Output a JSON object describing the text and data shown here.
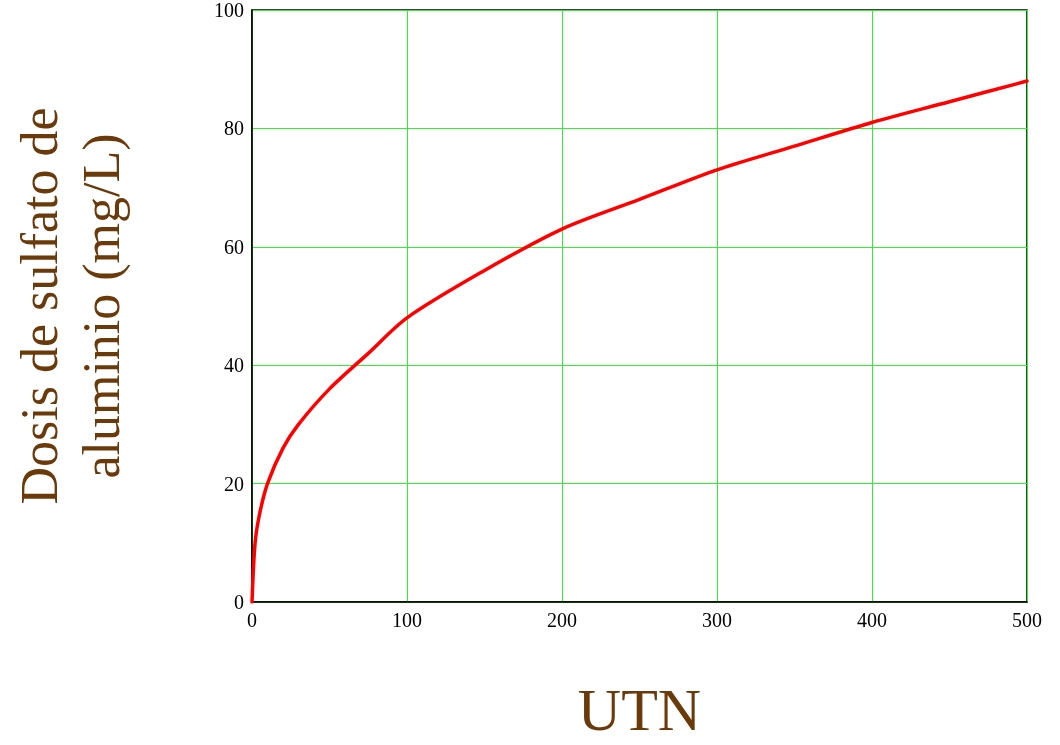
{
  "chart_data": {
    "type": "line",
    "xlabel": "UTN",
    "ylabel": "Dosis de sulfato de\naluminio (mg/L)",
    "xlim": [
      0,
      500
    ],
    "xticks": [
      0,
      100,
      200,
      300,
      400,
      500
    ],
    "ylim": [
      0,
      100
    ],
    "yticks": [
      0,
      20,
      40,
      60,
      80,
      100
    ],
    "grid": true,
    "marker": "none",
    "line_style": "solid",
    "series": [
      {
        "color": "#ff0000",
        "x": [
          0,
          2,
          5,
          10,
          20,
          30,
          50,
          75,
          100,
          150,
          200,
          250,
          300,
          350,
          400,
          450,
          500
        ],
        "values": [
          0,
          10,
          15,
          20,
          26,
          30,
          36,
          42,
          48,
          56,
          63,
          68,
          73,
          77,
          81,
          84.5,
          88
        ]
      }
    ]
  }
}
